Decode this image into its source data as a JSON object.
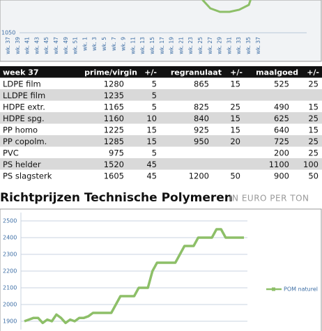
{
  "chart_data": [
    {
      "type": "line",
      "categories": [
        "wk. 37",
        "wk. 39",
        "wk. 41",
        "wk. 43",
        "wk. 45",
        "wk. 47",
        "wk. 49",
        "wk. 51",
        "wk. 1",
        "wk. 3",
        "wk. 5",
        "wk. 7",
        "wk. 9",
        "wk. 11",
        "wk. 13",
        "wk. 15",
        "wk. 17",
        "wk. 19",
        "wk. 21",
        "wk. 23",
        "wk. 25",
        "wk. 27",
        "wk. 29",
        "wk. 31",
        "wk. 33",
        "wk. 35",
        "wk. 37"
      ],
      "series": [
        {
          "color": "#8dbf68",
          "values": [
            null,
            null,
            null,
            null,
            null,
            null,
            null,
            null,
            null,
            null,
            null,
            null,
            null,
            null,
            null,
            null,
            null,
            null,
            null,
            null,
            1100,
            1085,
            1080,
            1080,
            1083,
            1090,
            1130
          ]
        }
      ],
      "ylim": [
        1050,
        1100
      ],
      "yticks": [
        1050
      ]
    },
    {
      "type": "line",
      "title": "Richtprijzen Technische Polymeren",
      "subtitle": "IN EURO PER TON",
      "series": [
        {
          "name": "POM naturel",
          "color": "#8dbf68",
          "values": [
            1900,
            1910,
            1920,
            1920,
            1890,
            1910,
            1900,
            1940,
            1920,
            1890,
            1910,
            1900,
            1920,
            1920,
            1930,
            1950,
            1950,
            1950,
            1950,
            1950,
            2000,
            2050,
            2050,
            2050,
            2050,
            2100,
            2100,
            2100,
            2200,
            2250,
            2250,
            2250,
            2250,
            2250,
            2300,
            2350,
            2350,
            2350,
            2400,
            2400,
            2400,
            2400,
            2450,
            2450,
            2400,
            2400,
            2400,
            2400,
            2400
          ]
        }
      ],
      "ylim": [
        1850,
        2550
      ],
      "yticks": [
        1900,
        2000,
        2100,
        2200,
        2300,
        2400,
        2500
      ],
      "grid": true
    }
  ],
  "table": {
    "header": [
      "week 37",
      "prime/virgin",
      "+/-",
      "regranulaat",
      "+/-",
      "maalgoed",
      "+/-"
    ],
    "rows": [
      [
        "LDPE film",
        1280,
        5,
        865,
        15,
        525,
        25
      ],
      [
        "LLDPE film",
        1235,
        5,
        null,
        null,
        null,
        null
      ],
      [
        "HDPE extr.",
        1165,
        5,
        825,
        25,
        490,
        15
      ],
      [
        "HDPE spg.",
        1160,
        10,
        840,
        15,
        625,
        25
      ],
      [
        "PP homo",
        1225,
        15,
        925,
        15,
        640,
        15
      ],
      [
        "PP copolm.",
        1285,
        15,
        950,
        20,
        725,
        25
      ],
      [
        "PVC",
        975,
        5,
        null,
        null,
        200,
        25
      ],
      [
        "PS helder",
        1520,
        45,
        null,
        null,
        1100,
        100
      ],
      [
        "PS slagsterk",
        1605,
        45,
        1200,
        50,
        900,
        50
      ]
    ]
  }
}
